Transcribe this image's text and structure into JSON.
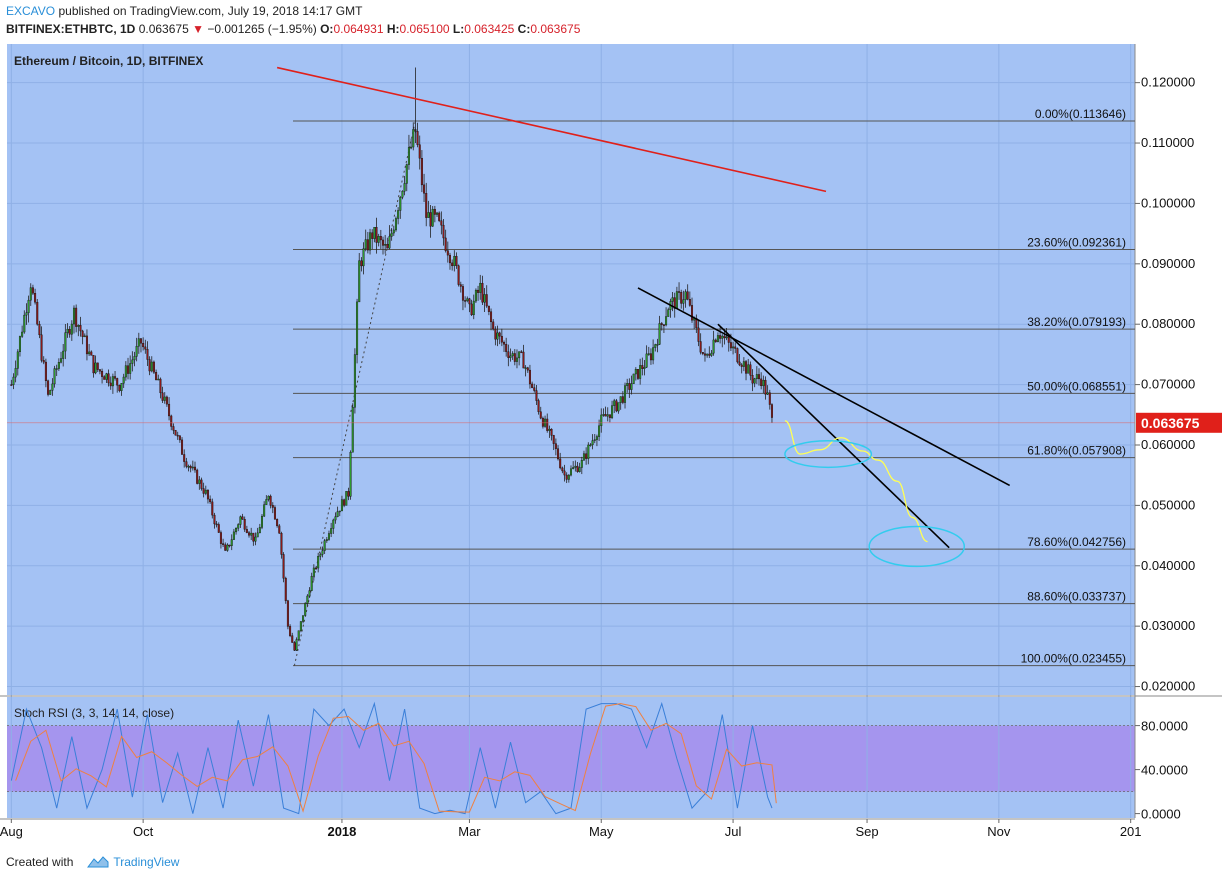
{
  "header": {
    "author": "EXCAVO",
    "published": "published on TradingView.com, July 19, 2018 14:17 GMT",
    "symbol": "BITFINEX:ETHBTC, 1D",
    "price": "0.063675",
    "change": "−0.001265 (−1.95%)",
    "o_label": "O:",
    "o_value": "0.064931",
    "h_label": "H:",
    "h_value": "0.065100",
    "l_label": "L:",
    "l_value": "0.063425",
    "c_label": "C:",
    "c_value": "0.063675"
  },
  "footer": {
    "created_with": "Created with",
    "brand": "TradingView"
  },
  "colors": {
    "background": "#a4c2f4",
    "bull": "#2e9a2e",
    "bear": "#8b1a1a",
    "fib_line": "#555555",
    "red_trend": "#e0201a",
    "black_trend": "#000000",
    "projection": "#ffff55",
    "ellipse": "#33ccee",
    "price_tag": "#e0201a",
    "rsi_band": "#a595ee",
    "rsi_k": "#3a7fd8",
    "rsi_d": "#f08040"
  },
  "chart_data": {
    "type": "candlestick",
    "title": "Ethereum / Bitcoin, 1D, BITFINEX",
    "y_range": [
      0.0186,
      0.1264
    ],
    "y_ticks": [
      "0.120000",
      "0.110000",
      "0.100000",
      "0.090000",
      "0.080000",
      "0.070000",
      "0.060000",
      "0.050000",
      "0.040000",
      "0.030000",
      "0.020000"
    ],
    "x_ticks": [
      "Aug",
      "Oct",
      "2018",
      "Mar",
      "May",
      "Jul",
      "Sep",
      "Nov",
      "201"
    ],
    "last_price": "0.063675",
    "price_path": [
      [
        "2017-08-01",
        0.07
      ],
      [
        "2017-08-10",
        0.087
      ],
      [
        "2017-08-18",
        0.068
      ],
      [
        "2017-08-30",
        0.082
      ],
      [
        "2017-09-08",
        0.073
      ],
      [
        "2017-09-20",
        0.07
      ],
      [
        "2017-09-30",
        0.077
      ],
      [
        "2017-10-10",
        0.068
      ],
      [
        "2017-10-20",
        0.058
      ],
      [
        "2017-10-30",
        0.052
      ],
      [
        "2017-11-08",
        0.042
      ],
      [
        "2017-11-15",
        0.048
      ],
      [
        "2017-11-22",
        0.044
      ],
      [
        "2017-11-28",
        0.052
      ],
      [
        "2017-12-03",
        0.046
      ],
      [
        "2017-12-07",
        0.03
      ],
      [
        "2017-12-10",
        0.026
      ],
      [
        "2017-12-18",
        0.038
      ],
      [
        "2017-12-28",
        0.048
      ],
      [
        "2018-01-04",
        0.052
      ],
      [
        "2018-01-09",
        0.09
      ],
      [
        "2018-01-15",
        0.095
      ],
      [
        "2018-01-22",
        0.092
      ],
      [
        "2018-02-01",
        0.108
      ],
      [
        "2018-02-04",
        0.112
      ],
      [
        "2018-02-09",
        0.098
      ],
      [
        "2018-02-14",
        0.097
      ],
      [
        "2018-02-22",
        0.09
      ],
      [
        "2018-03-01",
        0.082
      ],
      [
        "2018-03-06",
        0.086
      ],
      [
        "2018-03-12",
        0.079
      ],
      [
        "2018-03-20",
        0.075
      ],
      [
        "2018-03-26",
        0.074
      ],
      [
        "2018-04-03",
        0.065
      ],
      [
        "2018-04-10",
        0.059
      ],
      [
        "2018-04-14",
        0.055
      ],
      [
        "2018-04-22",
        0.057
      ],
      [
        "2018-05-01",
        0.064
      ],
      [
        "2018-05-09",
        0.067
      ],
      [
        "2018-05-18",
        0.072
      ],
      [
        "2018-05-24",
        0.075
      ],
      [
        "2018-06-01",
        0.083
      ],
      [
        "2018-06-09",
        0.085
      ],
      [
        "2018-06-12",
        0.081
      ],
      [
        "2018-06-18",
        0.074
      ],
      [
        "2018-06-24",
        0.079
      ],
      [
        "2018-06-28",
        0.077
      ],
      [
        "2018-07-05",
        0.074
      ],
      [
        "2018-07-10",
        0.071
      ],
      [
        "2018-07-14",
        0.071
      ],
      [
        "2018-07-17",
        0.068
      ],
      [
        "2018-07-19",
        0.064
      ]
    ],
    "fib_levels": [
      {
        "label": "0.00%(0.113646)",
        "value": 0.113646
      },
      {
        "label": "23.60%(0.092361)",
        "value": 0.092361
      },
      {
        "label": "38.20%(0.079193)",
        "value": 0.079193
      },
      {
        "label": "50.00%(0.068551)",
        "value": 0.068551
      },
      {
        "label": "61.80%(0.057908)",
        "value": 0.057908
      },
      {
        "label": "78.60%(0.042756)",
        "value": 0.042756
      },
      {
        "label": "88.60%(0.033737)",
        "value": 0.033737
      },
      {
        "label": "100.00%(0.023455)",
        "value": 0.023455
      }
    ],
    "trendlines": [
      {
        "name": "red-trendline",
        "from": [
          "2017-12-02",
          0.1225
        ],
        "to": [
          "2018-08-13",
          0.102
        ]
      },
      {
        "name": "black-trendline-upper",
        "from": [
          "2018-05-18",
          0.086
        ],
        "to": [
          "2018-11-06",
          0.0533
        ]
      },
      {
        "name": "black-trendline-lower",
        "from": [
          "2018-06-24",
          0.08
        ],
        "to": [
          "2018-10-09",
          0.043
        ]
      }
    ],
    "projection_path": [
      [
        "2018-07-25",
        0.064
      ],
      [
        "2018-08-01",
        0.0585
      ],
      [
        "2018-08-10",
        0.0592
      ],
      [
        "2018-08-20",
        0.0612
      ],
      [
        "2018-08-30",
        0.059
      ],
      [
        "2018-09-06",
        0.0575
      ],
      [
        "2018-09-15",
        0.054
      ],
      [
        "2018-09-22",
        0.048
      ],
      [
        "2018-09-29",
        0.044
      ]
    ],
    "target_zones": [
      {
        "name": "target-zone-1",
        "center": [
          "2018-08-14",
          0.0585
        ],
        "rx_days": 20,
        "ry": 0.0022
      },
      {
        "name": "target-zone-2",
        "center": [
          "2018-09-24",
          0.0432
        ],
        "rx_days": 22,
        "ry": 0.0033
      }
    ],
    "indicator": {
      "title": "Stoch RSI (3, 3, 14, 14, close)",
      "y_range": [
        -4,
        106
      ],
      "y_ticks": [
        "80.0000",
        "40.0000",
        "0.0000"
      ],
      "band": [
        20,
        80
      ],
      "k_path": [
        [
          "2017-08-01",
          30
        ],
        [
          "2017-08-08",
          95
        ],
        [
          "2017-08-15",
          60
        ],
        [
          "2017-08-22",
          5
        ],
        [
          "2017-08-29",
          70
        ],
        [
          "2017-09-05",
          5
        ],
        [
          "2017-09-12",
          40
        ],
        [
          "2017-09-19",
          95
        ],
        [
          "2017-09-26",
          15
        ],
        [
          "2017-10-03",
          90
        ],
        [
          "2017-10-10",
          10
        ],
        [
          "2017-10-17",
          55
        ],
        [
          "2017-10-24",
          0
        ],
        [
          "2017-10-31",
          60
        ],
        [
          "2017-11-07",
          5
        ],
        [
          "2017-11-14",
          85
        ],
        [
          "2017-11-21",
          25
        ],
        [
          "2017-11-28",
          90
        ],
        [
          "2017-12-05",
          5
        ],
        [
          "2017-12-12",
          0
        ],
        [
          "2017-12-19",
          95
        ],
        [
          "2017-12-26",
          80
        ],
        [
          "2018-01-02",
          95
        ],
        [
          "2018-01-09",
          60
        ],
        [
          "2018-01-16",
          100
        ],
        [
          "2018-01-23",
          30
        ],
        [
          "2018-01-30",
          95
        ],
        [
          "2018-02-06",
          5
        ],
        [
          "2018-02-13",
          0
        ],
        [
          "2018-02-20",
          3
        ],
        [
          "2018-02-27",
          0
        ],
        [
          "2018-03-06",
          60
        ],
        [
          "2018-03-13",
          5
        ],
        [
          "2018-03-20",
          65
        ],
        [
          "2018-03-27",
          10
        ],
        [
          "2018-04-03",
          20
        ],
        [
          "2018-04-10",
          0
        ],
        [
          "2018-04-17",
          5
        ],
        [
          "2018-04-24",
          95
        ],
        [
          "2018-05-01",
          100
        ],
        [
          "2018-05-08",
          100
        ],
        [
          "2018-05-15",
          95
        ],
        [
          "2018-05-22",
          60
        ],
        [
          "2018-05-29",
          100
        ],
        [
          "2018-06-05",
          50
        ],
        [
          "2018-06-12",
          5
        ],
        [
          "2018-06-19",
          20
        ],
        [
          "2018-06-26",
          90
        ],
        [
          "2018-07-03",
          5
        ],
        [
          "2018-07-10",
          80
        ],
        [
          "2018-07-17",
          15
        ],
        [
          "2018-07-19",
          5
        ]
      ]
    }
  }
}
